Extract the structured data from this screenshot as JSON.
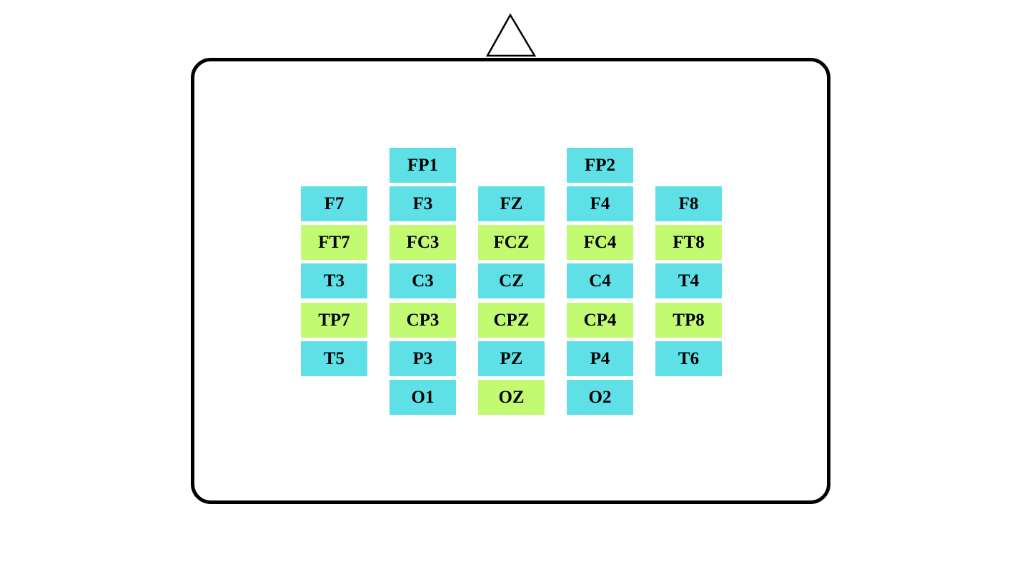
{
  "colors": {
    "cyan": "#5ee0e6",
    "green": "#c2fb72",
    "outline": "#000000",
    "background": "#ffffff"
  },
  "electrodes": [
    {
      "label": "FP1",
      "row": 0,
      "col": 1,
      "color": "cyan"
    },
    {
      "label": "FP2",
      "row": 0,
      "col": 3,
      "color": "cyan"
    },
    {
      "label": "F7",
      "row": 1,
      "col": 0,
      "color": "cyan"
    },
    {
      "label": "F3",
      "row": 1,
      "col": 1,
      "color": "cyan"
    },
    {
      "label": "FZ",
      "row": 1,
      "col": 2,
      "color": "cyan"
    },
    {
      "label": "F4",
      "row": 1,
      "col": 3,
      "color": "cyan"
    },
    {
      "label": "F8",
      "row": 1,
      "col": 4,
      "color": "cyan"
    },
    {
      "label": "FT7",
      "row": 2,
      "col": 0,
      "color": "green"
    },
    {
      "label": "FC3",
      "row": 2,
      "col": 1,
      "color": "green"
    },
    {
      "label": "FCZ",
      "row": 2,
      "col": 2,
      "color": "green"
    },
    {
      "label": "FC4",
      "row": 2,
      "col": 3,
      "color": "green"
    },
    {
      "label": "FT8",
      "row": 2,
      "col": 4,
      "color": "green"
    },
    {
      "label": "T3",
      "row": 3,
      "col": 0,
      "color": "cyan"
    },
    {
      "label": "C3",
      "row": 3,
      "col": 1,
      "color": "cyan"
    },
    {
      "label": "CZ",
      "row": 3,
      "col": 2,
      "color": "cyan"
    },
    {
      "label": "C4",
      "row": 3,
      "col": 3,
      "color": "cyan"
    },
    {
      "label": "T4",
      "row": 3,
      "col": 4,
      "color": "cyan"
    },
    {
      "label": "TP7",
      "row": 4,
      "col": 0,
      "color": "green"
    },
    {
      "label": "CP3",
      "row": 4,
      "col": 1,
      "color": "green"
    },
    {
      "label": "CPZ",
      "row": 4,
      "col": 2,
      "color": "green"
    },
    {
      "label": "CP4",
      "row": 4,
      "col": 3,
      "color": "green"
    },
    {
      "label": "TP8",
      "row": 4,
      "col": 4,
      "color": "green"
    },
    {
      "label": "T5",
      "row": 5,
      "col": 0,
      "color": "cyan"
    },
    {
      "label": "P3",
      "row": 5,
      "col": 1,
      "color": "cyan"
    },
    {
      "label": "PZ",
      "row": 5,
      "col": 2,
      "color": "cyan"
    },
    {
      "label": "P4",
      "row": 5,
      "col": 3,
      "color": "cyan"
    },
    {
      "label": "T6",
      "row": 5,
      "col": 4,
      "color": "cyan"
    },
    {
      "label": "O1",
      "row": 6,
      "col": 1,
      "color": "cyan"
    },
    {
      "label": "OZ",
      "row": 6,
      "col": 2,
      "color": "green"
    },
    {
      "label": "O2",
      "row": 6,
      "col": 3,
      "color": "cyan"
    }
  ]
}
